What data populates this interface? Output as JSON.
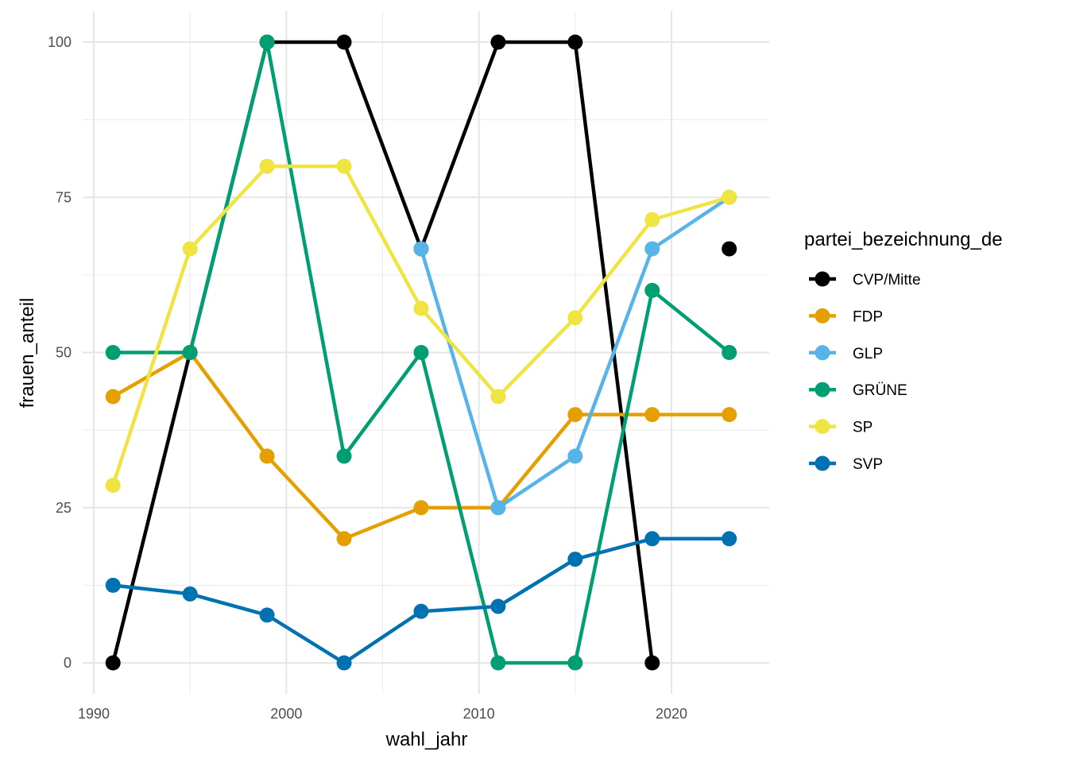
{
  "chart_data": {
    "type": "line",
    "xlabel": "wahl_jahr",
    "ylabel": "frauen_anteil",
    "xlim": [
      1990,
      2024
    ],
    "ylim": [
      0,
      100
    ],
    "x_ticks": [
      1990,
      2000,
      2010,
      2020
    ],
    "y_ticks": [
      0,
      25,
      50,
      75,
      100
    ],
    "grid": true,
    "legend": {
      "title": "partei_bezeichnung_de",
      "placement": "right"
    },
    "x": [
      1991,
      1995,
      1999,
      2003,
      2007,
      2011,
      2015,
      2019,
      2023
    ],
    "series": [
      {
        "name": "CVP/Mitte",
        "color": "#000000",
        "values": [
          0,
          50,
          100,
          100,
          66.7,
          100,
          100,
          0,
          null
        ],
        "extra_points": [
          [
            2023,
            66.7
          ]
        ]
      },
      {
        "name": "FDP",
        "color": "#E69F00",
        "values": [
          42.9,
          50,
          33.3,
          20,
          25,
          25,
          40,
          40,
          40
        ]
      },
      {
        "name": "GLP",
        "color": "#56B4E9",
        "values": [
          null,
          null,
          null,
          null,
          66.7,
          25,
          33.3,
          66.7,
          75
        ]
      },
      {
        "name": "GRÜNE",
        "color": "#009E73",
        "values": [
          50,
          50,
          100,
          33.3,
          50,
          0,
          0,
          60,
          50
        ]
      },
      {
        "name": "SP",
        "color": "#F0E442",
        "values": [
          28.6,
          66.7,
          80,
          80,
          57.1,
          42.9,
          55.6,
          71.4,
          75
        ]
      },
      {
        "name": "SVP",
        "color": "#0072B2",
        "values": [
          12.5,
          11.1,
          7.7,
          0,
          8.3,
          9.1,
          16.7,
          20,
          20
        ]
      }
    ]
  }
}
